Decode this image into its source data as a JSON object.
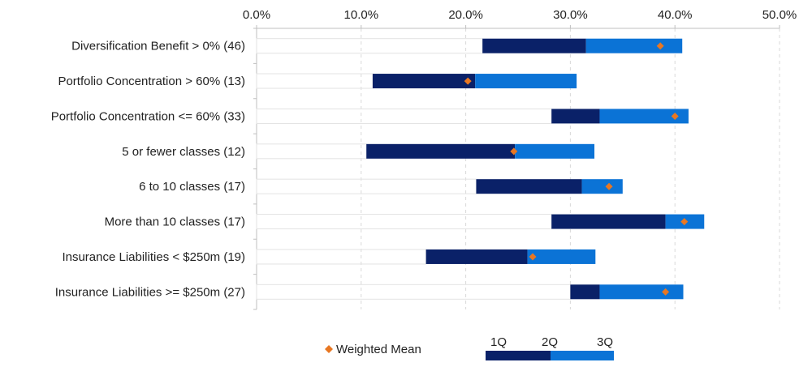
{
  "chart_data": {
    "type": "bar",
    "orientation": "horizontal",
    "stacked": true,
    "xlim": [
      0,
      50
    ],
    "x_ticks": [
      "0.0%",
      "10.0%",
      "20.0%",
      "30.0%",
      "40.0%",
      "50.0%"
    ],
    "x_tick_values": [
      0,
      10,
      20,
      30,
      40,
      50
    ],
    "x_axis_position": "top",
    "grid": "vertical dashed",
    "legend_position": "bottom",
    "categories": [
      "Diversification Benefit > 0% (46)",
      "Portfolio Concentration > 60% (13)",
      "Portfolio Concentration <= 60% (33)",
      "5 or fewer classes (12)",
      "6 to 10 classes (17)",
      "More than 10 classes (17)",
      "Insurance Liabilities < $250m (19)",
      "Insurance Liabilities >= $250m (27)"
    ],
    "q1": [
      21.6,
      11.1,
      28.2,
      10.5,
      21.0,
      28.2,
      16.2,
      30.0
    ],
    "median": [
      31.5,
      20.9,
      32.8,
      24.7,
      31.1,
      39.1,
      25.9,
      32.8
    ],
    "q3": [
      40.7,
      30.6,
      41.3,
      32.3,
      35.0,
      42.8,
      32.4,
      40.8
    ],
    "weighted_mean": [
      38.6,
      20.2,
      40.0,
      24.6,
      33.7,
      40.9,
      26.4,
      39.1
    ],
    "series": [
      {
        "name": "Weighted Mean",
        "color": "#e87722",
        "marker": "diamond"
      },
      {
        "name": "1Q-2Q",
        "color": "#0a2168"
      },
      {
        "name": "2Q-3Q",
        "color": "#0b73d6"
      }
    ],
    "legend": {
      "mean_label": "Weighted Mean",
      "q_labels": [
        "1Q",
        "2Q",
        "3Q"
      ]
    },
    "colors": {
      "dark": "#0a2168",
      "light": "#0b73d6",
      "mean": "#e87722",
      "outline": "#e3e3e3",
      "grid": "#d9d9d9",
      "axis": "#bfbfbf"
    }
  }
}
